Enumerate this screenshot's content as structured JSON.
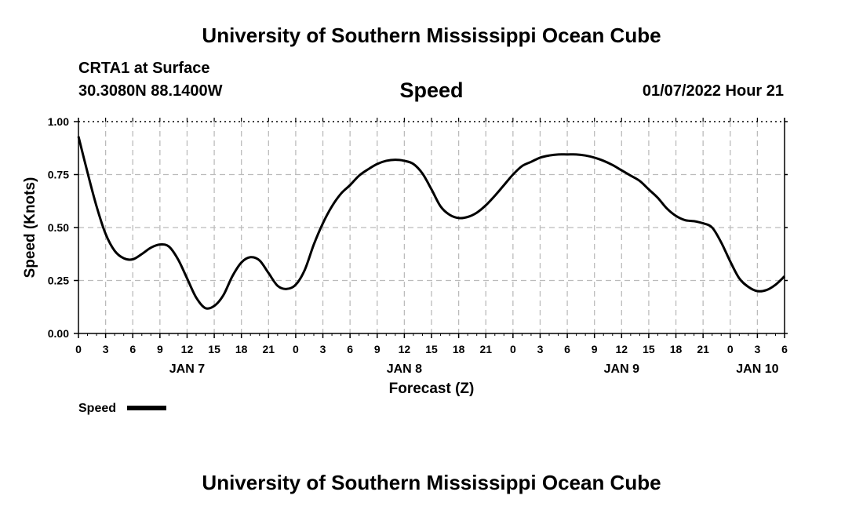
{
  "header": {
    "title": "University of Southern Mississippi Ocean Cube",
    "station": "CRTA1 at Surface",
    "coords": "30.3080N  88.1400W",
    "parameter": "Speed",
    "datetime": "01/07/2022 Hour 21"
  },
  "footer": {
    "title": "University of Southern Mississippi Ocean Cube"
  },
  "chart_data": {
    "type": "line",
    "title": "Speed",
    "xlabel": "Forecast (Z)",
    "ylabel": "Speed (Knots)",
    "ylim": [
      0,
      1.0
    ],
    "xlim": [
      0,
      78
    ],
    "yticks": [
      "0.00",
      "0.25",
      "0.50",
      "0.75",
      "1.00"
    ],
    "ytick_values": [
      0,
      0.25,
      0.5,
      0.75,
      1.0
    ],
    "xtick_labels": [
      "0",
      "3",
      "6",
      "9",
      "12",
      "15",
      "18",
      "21",
      "0",
      "3",
      "6",
      "9",
      "12",
      "15",
      "18",
      "21",
      "0",
      "3",
      "6",
      "9",
      "12",
      "15",
      "18",
      "21",
      "0",
      "3",
      "6"
    ],
    "day_labels": [
      {
        "label": "JAN 7",
        "hour": 12
      },
      {
        "label": "JAN 8",
        "hour": 36
      },
      {
        "label": "JAN 9",
        "hour": 60
      },
      {
        "label": "JAN 10",
        "hour": 75
      }
    ],
    "grid": true,
    "line_color": "#000000",
    "grid_color": "#bbbbbb",
    "legend": {
      "label": "Speed",
      "position": "bottom-left"
    },
    "series": [
      {
        "name": "Speed",
        "x": [
          0,
          1,
          2,
          3,
          4,
          5,
          6,
          7,
          8,
          9,
          10,
          11,
          12,
          13,
          14,
          15,
          16,
          17,
          18,
          19,
          20,
          21,
          22,
          23,
          24,
          25,
          26,
          27,
          28,
          29,
          30,
          31,
          32,
          33,
          34,
          35,
          36,
          37,
          38,
          39,
          40,
          41,
          42,
          43,
          44,
          45,
          46,
          47,
          48,
          49,
          50,
          51,
          52,
          53,
          54,
          55,
          56,
          57,
          58,
          59,
          60,
          61,
          62,
          63,
          64,
          65,
          66,
          67,
          68,
          69,
          70,
          71,
          72,
          73,
          74,
          75,
          76,
          77,
          78
        ],
        "values": [
          0.93,
          0.76,
          0.6,
          0.47,
          0.39,
          0.355,
          0.35,
          0.375,
          0.405,
          0.42,
          0.41,
          0.35,
          0.26,
          0.17,
          0.12,
          0.13,
          0.18,
          0.27,
          0.335,
          0.36,
          0.345,
          0.285,
          0.225,
          0.21,
          0.23,
          0.3,
          0.42,
          0.52,
          0.6,
          0.66,
          0.7,
          0.745,
          0.775,
          0.8,
          0.815,
          0.82,
          0.815,
          0.8,
          0.755,
          0.68,
          0.6,
          0.56,
          0.545,
          0.55,
          0.57,
          0.605,
          0.65,
          0.7,
          0.75,
          0.79,
          0.81,
          0.83,
          0.84,
          0.845,
          0.845,
          0.845,
          0.84,
          0.83,
          0.815,
          0.795,
          0.77,
          0.745,
          0.72,
          0.68,
          0.64,
          0.59,
          0.555,
          0.535,
          0.53,
          0.52,
          0.5,
          0.43,
          0.34,
          0.26,
          0.22,
          0.2,
          0.205,
          0.23,
          0.27
        ]
      }
    ]
  }
}
